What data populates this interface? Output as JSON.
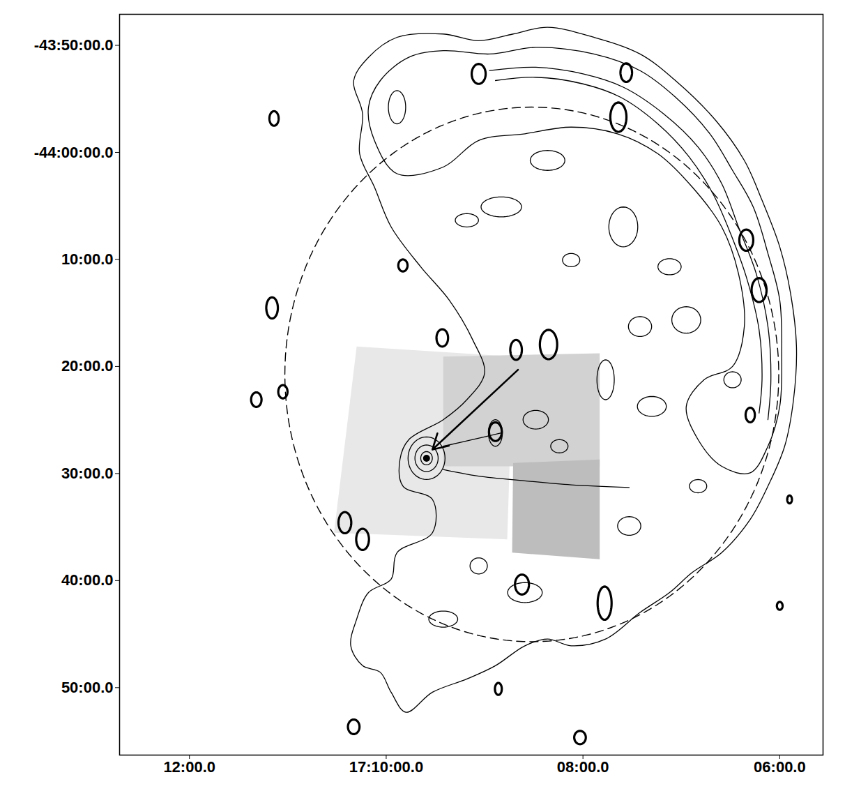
{
  "chart_data": {
    "type": "contour",
    "xlim": [
      1032.71,
      1025.56
    ],
    "ylim": [
      -2696.3,
      -2627.1
    ],
    "xticks": [
      {
        "value": 1032,
        "label": "12:00.0"
      },
      {
        "value": 1030,
        "label": "17:10:00.0"
      },
      {
        "value": 1028,
        "label": "08:00.0"
      },
      {
        "value": 1026,
        "label": "06:00.0"
      }
    ],
    "yticks": [
      {
        "value": -2630,
        "label": "-43:50:00.0"
      },
      {
        "value": -2640,
        "label": "-44:00:00.0"
      },
      {
        "value": -2650,
        "label": "10:00.0"
      },
      {
        "value": -2660,
        "label": "20:00.0"
      },
      {
        "value": -2670,
        "label": "30:00.0"
      },
      {
        "value": -2680,
        "label": "40:00.0"
      },
      {
        "value": -2690,
        "label": "50:00.0"
      }
    ],
    "grid": false,
    "xray_fields": [
      {
        "color": "#e8e8e8",
        "points": [
          [
            1030.3,
            -2658.14
          ],
          [
            1028.71,
            -2659.07
          ],
          [
            1028.77,
            -2676.15
          ],
          [
            1030.53,
            -2675.53
          ]
        ]
      },
      {
        "color": "#d2d2d2",
        "points": [
          [
            1029.42,
            -2659.07
          ],
          [
            1027.83,
            -2658.76
          ],
          [
            1027.83,
            -2669.32
          ],
          [
            1029.42,
            -2669.32
          ]
        ]
      },
      {
        "color": "#bdbdbd",
        "points": [
          [
            1028.71,
            -2669.01
          ],
          [
            1027.83,
            -2668.69
          ],
          [
            1027.83,
            -2678.01
          ],
          [
            1028.72,
            -2677.39
          ]
        ]
      }
    ],
    "contours": [
      {
        "closed": true,
        "points": [
          [
            1030.18,
            -2631.12
          ],
          [
            1029.89,
            -2629.25
          ],
          [
            1029.42,
            -2628.94
          ],
          [
            1029.06,
            -2629.57
          ],
          [
            1028.71,
            -2628.94
          ],
          [
            1028.36,
            -2628.32
          ],
          [
            1027.89,
            -2629.25
          ],
          [
            1027.42,
            -2630.81
          ],
          [
            1027.06,
            -2633.29
          ],
          [
            1026.65,
            -2637.02
          ],
          [
            1026.36,
            -2640.75
          ],
          [
            1026.18,
            -2644.47
          ],
          [
            1026.0,
            -2648.82
          ],
          [
            1025.89,
            -2653.17
          ],
          [
            1025.83,
            -2658.14
          ],
          [
            1025.86,
            -2663.1
          ],
          [
            1025.95,
            -2667.45
          ],
          [
            1026.12,
            -2671.18
          ],
          [
            1026.3,
            -2674.28
          ],
          [
            1026.59,
            -2677.39
          ],
          [
            1026.89,
            -2679.25
          ],
          [
            1027.12,
            -2681.12
          ],
          [
            1027.42,
            -2682.98
          ],
          [
            1027.77,
            -2685.46
          ],
          [
            1028.12,
            -2686.09
          ],
          [
            1028.36,
            -2685.46
          ],
          [
            1028.59,
            -2686.09
          ],
          [
            1028.89,
            -2687.95
          ],
          [
            1029.18,
            -2689.19
          ],
          [
            1029.53,
            -2690.43
          ],
          [
            1029.8,
            -2692.3
          ],
          [
            1029.95,
            -2690.43
          ],
          [
            1030.06,
            -2688.57
          ],
          [
            1030.24,
            -2687.95
          ],
          [
            1030.36,
            -2686.09
          ],
          [
            1030.3,
            -2683.6
          ],
          [
            1030.18,
            -2681.12
          ],
          [
            1029.95,
            -2679.87
          ],
          [
            1029.89,
            -2677.39
          ],
          [
            1029.53,
            -2675.53
          ],
          [
            1029.53,
            -2672.42
          ],
          [
            1029.83,
            -2671.18
          ],
          [
            1029.86,
            -2668.69
          ],
          [
            1029.77,
            -2666.83
          ],
          [
            1029.42,
            -2664.97
          ],
          [
            1029.18,
            -2663.1
          ],
          [
            1029.0,
            -2660.62
          ],
          [
            1029.12,
            -2657.52
          ],
          [
            1029.36,
            -2653.79
          ],
          [
            1029.65,
            -2650.68
          ],
          [
            1029.95,
            -2646.96
          ],
          [
            1030.12,
            -2643.23
          ],
          [
            1030.27,
            -2640.12
          ],
          [
            1030.24,
            -2636.4
          ],
          [
            1030.33,
            -2633.29
          ]
        ]
      },
      {
        "closed": true,
        "points": [
          [
            1030.06,
            -2633.29
          ],
          [
            1029.77,
            -2631.12
          ],
          [
            1029.42,
            -2630.5
          ],
          [
            1028.95,
            -2630.81
          ],
          [
            1028.48,
            -2630.19
          ],
          [
            1027.89,
            -2630.81
          ],
          [
            1027.42,
            -2632.36
          ],
          [
            1027.06,
            -2634.84
          ],
          [
            1026.71,
            -2638.26
          ],
          [
            1026.48,
            -2641.68
          ],
          [
            1026.27,
            -2645.09
          ],
          [
            1026.12,
            -2649.44
          ],
          [
            1026.0,
            -2653.79
          ],
          [
            1025.98,
            -2658.76
          ],
          [
            1026.0,
            -2663.73
          ],
          [
            1026.12,
            -2667.45
          ],
          [
            1026.3,
            -2669.94
          ],
          [
            1026.59,
            -2669.32
          ],
          [
            1026.83,
            -2666.83
          ],
          [
            1026.95,
            -2663.73
          ],
          [
            1026.77,
            -2661.24
          ],
          [
            1026.48,
            -2660.0
          ],
          [
            1026.36,
            -2656.27
          ],
          [
            1026.42,
            -2651.3
          ],
          [
            1026.59,
            -2646.96
          ],
          [
            1026.89,
            -2643.23
          ],
          [
            1027.24,
            -2640.12
          ],
          [
            1027.65,
            -2638.26
          ],
          [
            1028.12,
            -2637.64
          ],
          [
            1028.59,
            -2638.26
          ],
          [
            1029.06,
            -2638.88
          ],
          [
            1029.42,
            -2641.37
          ],
          [
            1029.89,
            -2641.99
          ],
          [
            1030.12,
            -2638.88
          ],
          [
            1030.18,
            -2635.78
          ]
        ]
      },
      {
        "closed": false,
        "points": [
          [
            1028.95,
            -2632.36
          ],
          [
            1028.48,
            -2632.05
          ],
          [
            1028.0,
            -2632.67
          ],
          [
            1027.59,
            -2633.91
          ],
          [
            1027.18,
            -2636.4
          ],
          [
            1026.83,
            -2639.5
          ],
          [
            1026.59,
            -2642.92
          ],
          [
            1026.42,
            -2646.96
          ],
          [
            1026.24,
            -2651.3
          ],
          [
            1026.12,
            -2656.27
          ],
          [
            1026.09,
            -2661.24
          ],
          [
            1026.12,
            -2664.97
          ]
        ]
      },
      {
        "closed": false,
        "points": [
          [
            1028.89,
            -2633.29
          ],
          [
            1028.48,
            -2632.98
          ],
          [
            1028.0,
            -2633.6
          ],
          [
            1027.62,
            -2634.84
          ],
          [
            1027.24,
            -2637.33
          ],
          [
            1026.92,
            -2640.43
          ],
          [
            1026.68,
            -2643.85
          ],
          [
            1026.5,
            -2647.58
          ],
          [
            1026.33,
            -2651.93
          ],
          [
            1026.21,
            -2656.58
          ],
          [
            1026.18,
            -2661.24
          ],
          [
            1026.21,
            -2664.35
          ]
        ]
      },
      {
        "closed": false,
        "points": [
          [
            1029.42,
            -2669.63
          ],
          [
            1029.06,
            -2670.25
          ],
          [
            1028.59,
            -2670.68
          ],
          [
            1028.12,
            -2671.06
          ],
          [
            1027.53,
            -2671.3
          ]
        ]
      },
      {
        "closed": false,
        "points": [
          [
            1029.42,
            -2667.45
          ],
          [
            1029.12,
            -2666.83
          ],
          [
            1028.83,
            -2666.21
          ]
        ]
      }
    ],
    "contour_ellipses": [
      {
        "x": 1029.59,
        "y": -2668.57,
        "rx": 0.059,
        "ry": 0.62
      },
      {
        "x": 1029.59,
        "y": -2668.57,
        "rx": 0.118,
        "ry": 1.24
      },
      {
        "x": 1029.59,
        "y": -2668.57,
        "rx": 0.188,
        "ry": 1.99
      },
      {
        "x": 1028.36,
        "y": -2640.75,
        "rx": 0.176,
        "ry": 0.93
      },
      {
        "x": 1027.59,
        "y": -2646.96,
        "rx": 0.147,
        "ry": 1.86
      },
      {
        "x": 1027.12,
        "y": -2650.68,
        "rx": 0.118,
        "ry": 0.75
      },
      {
        "x": 1028.83,
        "y": -2645.09,
        "rx": 0.206,
        "ry": 0.93
      },
      {
        "x": 1028.12,
        "y": -2650.06,
        "rx": 0.088,
        "ry": 0.62
      },
      {
        "x": 1027.42,
        "y": -2656.27,
        "rx": 0.118,
        "ry": 0.93
      },
      {
        "x": 1027.77,
        "y": -2661.24,
        "rx": 0.088,
        "ry": 1.86
      },
      {
        "x": 1026.95,
        "y": -2655.65,
        "rx": 0.147,
        "ry": 1.24
      },
      {
        "x": 1028.48,
        "y": -2664.97,
        "rx": 0.129,
        "ry": 0.87
      },
      {
        "x": 1028.24,
        "y": -2667.45,
        "rx": 0.088,
        "ry": 0.62
      },
      {
        "x": 1028.89,
        "y": -2666.21,
        "rx": 0.071,
        "ry": 1.24
      },
      {
        "x": 1027.3,
        "y": -2663.73,
        "rx": 0.147,
        "ry": 0.93
      },
      {
        "x": 1029.06,
        "y": -2678.63,
        "rx": 0.088,
        "ry": 0.75
      },
      {
        "x": 1028.59,
        "y": -2681.12,
        "rx": 0.176,
        "ry": 0.93
      },
      {
        "x": 1029.42,
        "y": -2683.6,
        "rx": 0.147,
        "ry": 0.75
      },
      {
        "x": 1027.53,
        "y": -2674.9,
        "rx": 0.118,
        "ry": 0.87
      },
      {
        "x": 1026.83,
        "y": -2671.18,
        "rx": 0.088,
        "ry": 0.62
      },
      {
        "x": 1029.18,
        "y": -2646.34,
        "rx": 0.118,
        "ry": 0.62
      },
      {
        "x": 1029.89,
        "y": -2635.78,
        "rx": 0.088,
        "ry": 1.55
      },
      {
        "x": 1026.48,
        "y": -2661.24,
        "rx": 0.088,
        "ry": 0.75
      }
    ],
    "sources": [
      {
        "x": 1029.06,
        "y": -2632.67,
        "rx": 0.071,
        "ry": 0.93
      },
      {
        "x": 1027.56,
        "y": -2632.55,
        "rx": 0.059,
        "ry": 0.87
      },
      {
        "x": 1027.64,
        "y": -2636.71,
        "rx": 0.082,
        "ry": 1.37
      },
      {
        "x": 1031.14,
        "y": -2636.83,
        "rx": 0.047,
        "ry": 0.68
      },
      {
        "x": 1026.34,
        "y": -2648.2,
        "rx": 0.071,
        "ry": 0.99
      },
      {
        "x": 1026.21,
        "y": -2652.86,
        "rx": 0.076,
        "ry": 1.12
      },
      {
        "x": 1031.16,
        "y": -2654.53,
        "rx": 0.059,
        "ry": 0.99
      },
      {
        "x": 1029.43,
        "y": -2657.33,
        "rx": 0.059,
        "ry": 0.81
      },
      {
        "x": 1028.35,
        "y": -2657.95,
        "rx": 0.088,
        "ry": 1.37
      },
      {
        "x": 1028.68,
        "y": -2658.45,
        "rx": 0.059,
        "ry": 0.93
      },
      {
        "x": 1028.89,
        "y": -2666.09,
        "rx": 0.065,
        "ry": 0.87
      },
      {
        "x": 1031.05,
        "y": -2662.36,
        "rx": 0.047,
        "ry": 0.62
      },
      {
        "x": 1031.32,
        "y": -2663.1,
        "rx": 0.053,
        "ry": 0.68
      },
      {
        "x": 1026.3,
        "y": -2664.53,
        "rx": 0.047,
        "ry": 0.68
      },
      {
        "x": 1030.42,
        "y": -2674.59,
        "rx": 0.065,
        "ry": 0.99
      },
      {
        "x": 1030.24,
        "y": -2676.15,
        "rx": 0.065,
        "ry": 0.99
      },
      {
        "x": 1028.62,
        "y": -2680.37,
        "rx": 0.071,
        "ry": 0.93
      },
      {
        "x": 1027.78,
        "y": -2682.11,
        "rx": 0.071,
        "ry": 1.55
      },
      {
        "x": 1030.33,
        "y": -2693.66,
        "rx": 0.059,
        "ry": 0.68
      },
      {
        "x": 1028.03,
        "y": -2694.66,
        "rx": 0.059,
        "ry": 0.62
      },
      {
        "x": 1028.86,
        "y": -2690.12,
        "rx": 0.035,
        "ry": 0.56
      },
      {
        "x": 1029.83,
        "y": -2650.56,
        "rx": 0.047,
        "ry": 0.56
      },
      {
        "x": 1026.0,
        "y": -2682.36,
        "rx": 0.029,
        "ry": 0.37
      },
      {
        "x": 1025.9,
        "y": -2672.42,
        "rx": 0.024,
        "ry": 0.37
      }
    ],
    "dashed_circle": {
      "x": 1028.52,
      "y": -2660.74,
      "rx": 2.51,
      "ry": 24.97,
      "line_style": "dashed"
    },
    "arrow": {
      "x1": 1028.66,
      "y1": -2660.31,
      "x2": 1029.53,
      "y2": -2667.76
    },
    "pulsar": {
      "x": 1029.59,
      "y": -2668.57
    }
  }
}
